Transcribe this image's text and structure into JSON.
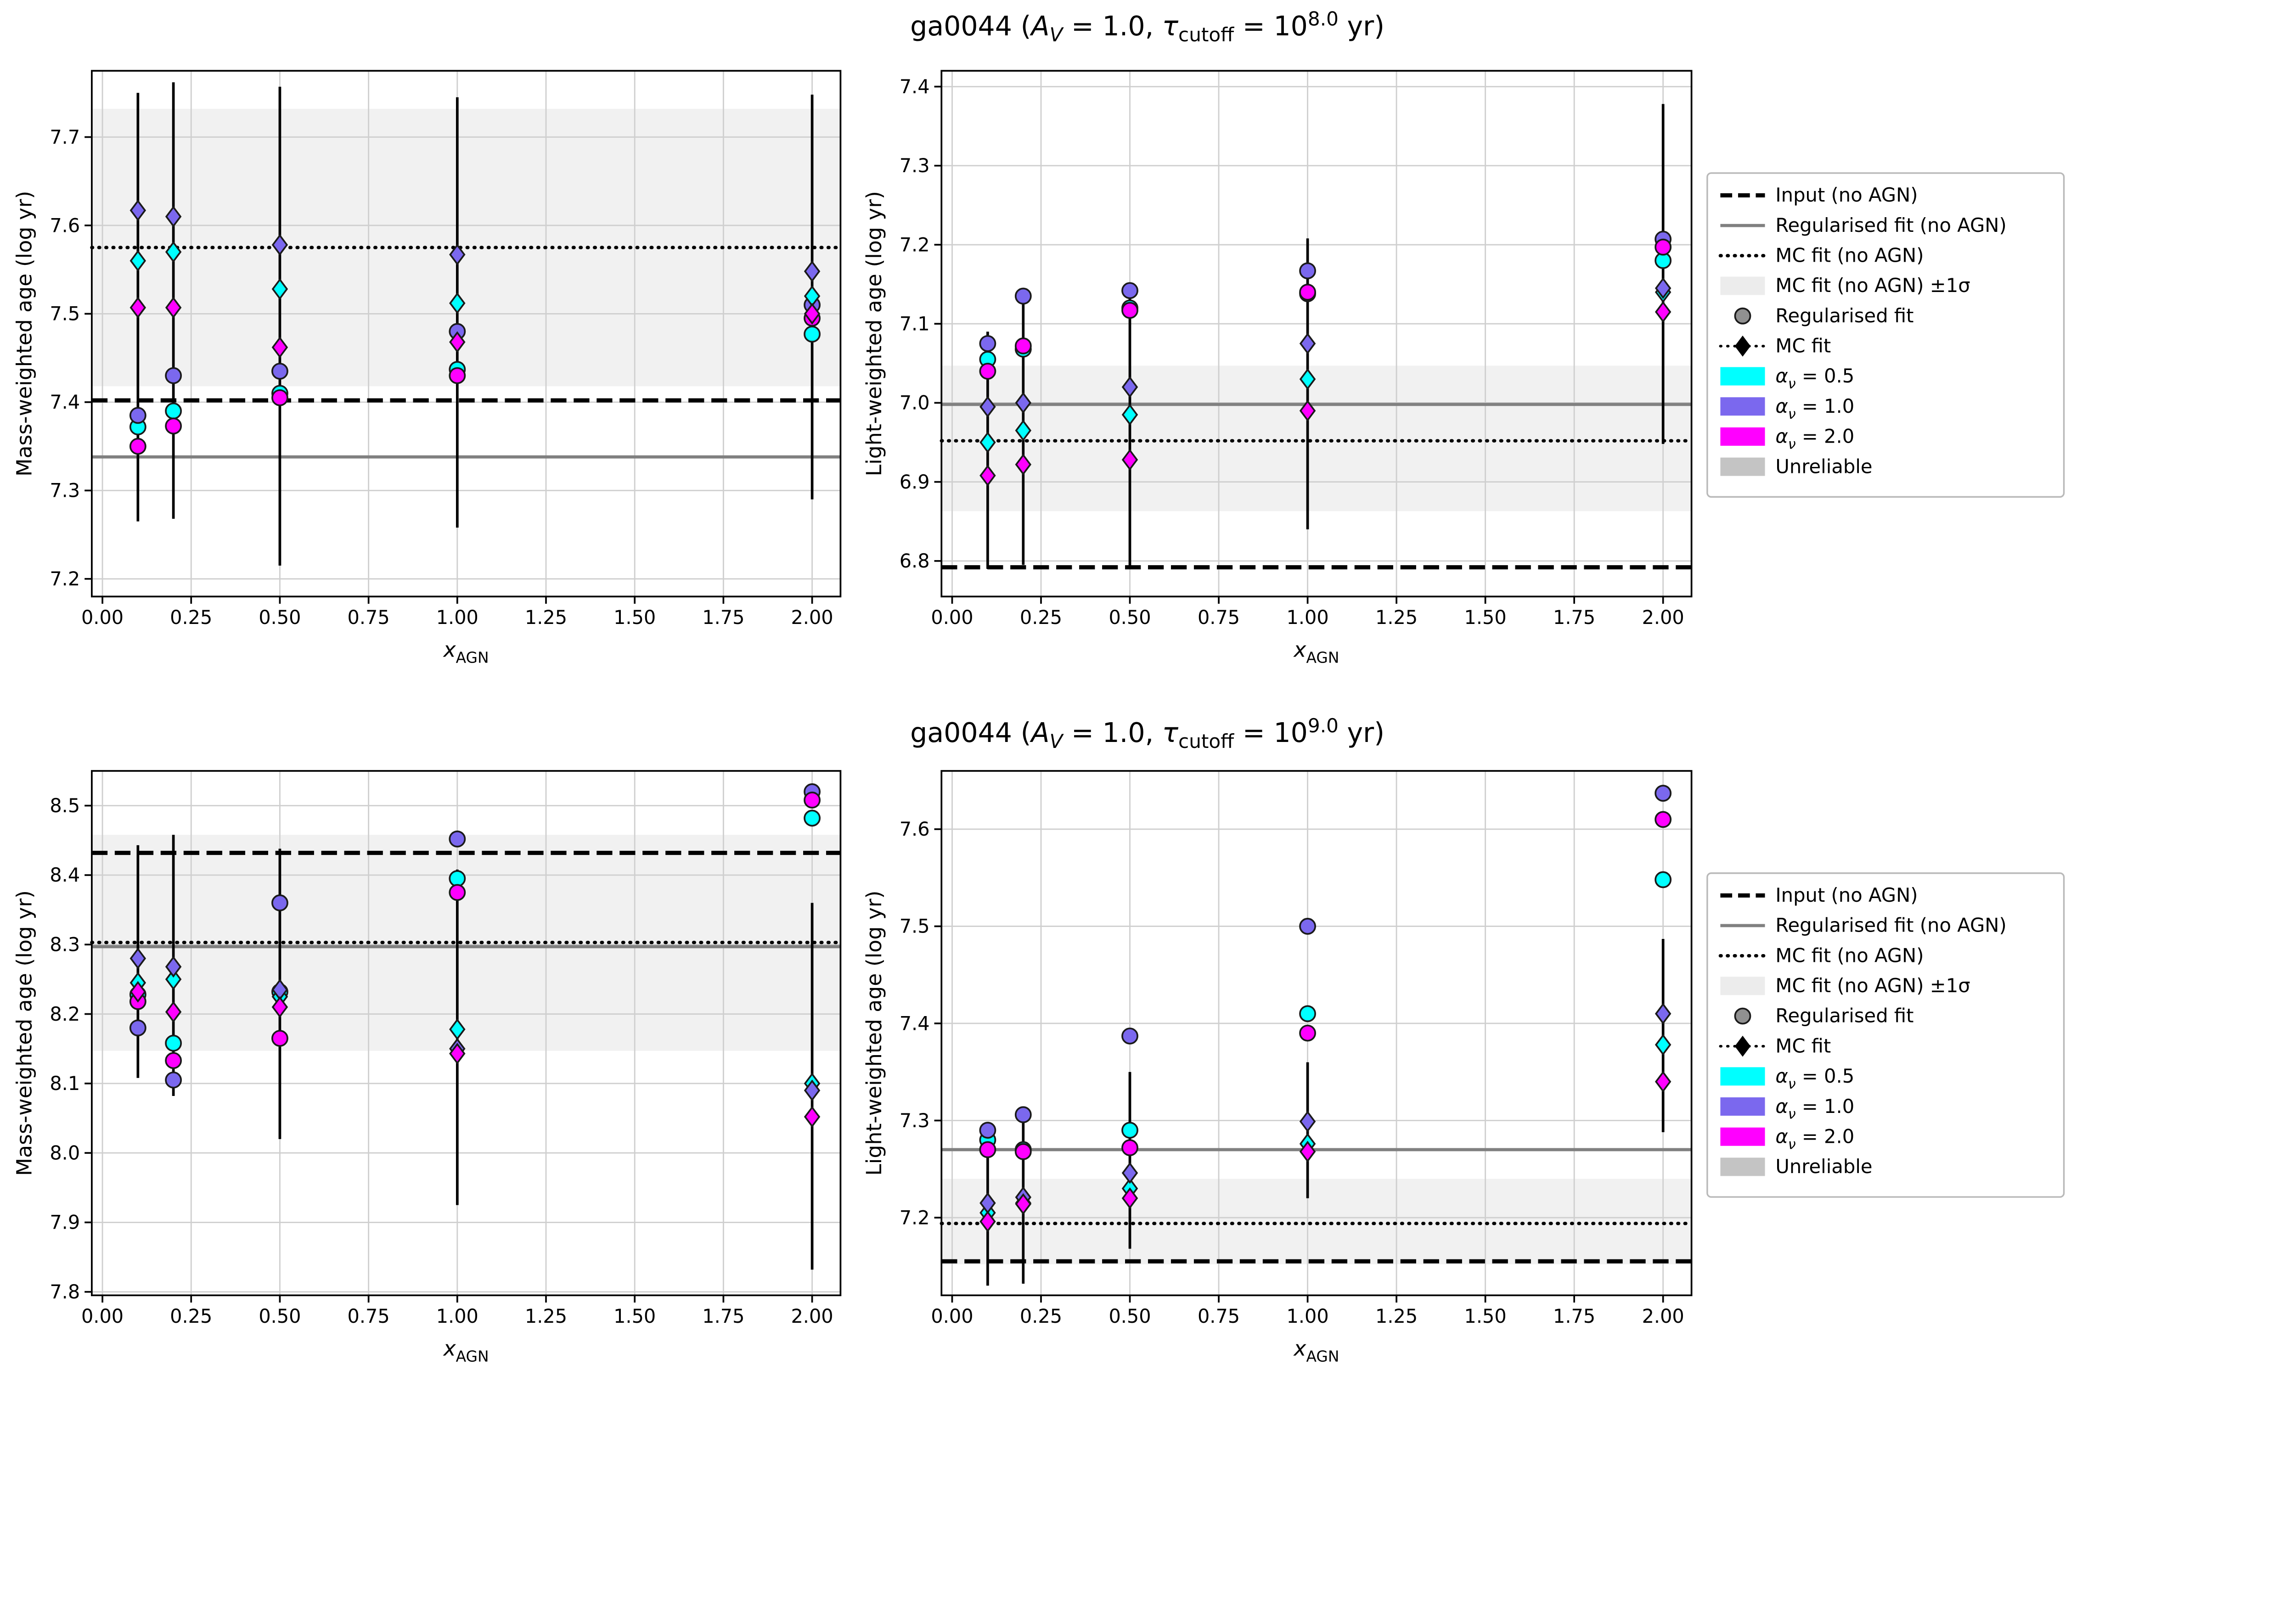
{
  "figure_titles": [
    {
      "segments": [
        {
          "t": "ga0044 ("
        },
        {
          "t": "A",
          "i": 1
        },
        {
          "t": "V",
          "sub": 1,
          "i": 1
        },
        {
          "t": " = 1.0, "
        },
        {
          "t": "τ",
          "i": 1
        },
        {
          "t": "cutoff",
          "sub": 1
        },
        {
          "t": " = 10"
        },
        {
          "t": "8.0",
          "sup": 1
        },
        {
          "t": " yr)"
        }
      ]
    },
    {
      "segments": [
        {
          "t": "ga0044 ("
        },
        {
          "t": "A",
          "i": 1
        },
        {
          "t": "V",
          "sub": 1,
          "i": 1
        },
        {
          "t": " = 1.0, "
        },
        {
          "t": "τ",
          "i": 1
        },
        {
          "t": "cutoff",
          "sub": 1
        },
        {
          "t": " = 10"
        },
        {
          "t": "9.0",
          "sup": 1
        },
        {
          "t": " yr)"
        }
      ]
    }
  ],
  "x_axis": {
    "label_segments": [
      {
        "t": "x",
        "i": 1
      },
      {
        "t": "AGN",
        "sub": 1
      }
    ],
    "lim": [
      -0.03,
      2.08
    ],
    "ticks": [
      0,
      0.25,
      0.5,
      0.75,
      1.0,
      1.25,
      1.5,
      1.75,
      2.0
    ],
    "tick_labels": [
      "0.00",
      "0.25",
      "0.50",
      "0.75",
      "1.00",
      "1.25",
      "1.50",
      "1.75",
      "2.00"
    ]
  },
  "colors": {
    "alpha_05": "#00FFFF",
    "alpha_10": "#7B68EE",
    "alpha_20": "#FF00FF",
    "gray_line": "#808080",
    "band": "#ececec",
    "unreliable": "#c4c4c4",
    "grid": "#cfcfcf",
    "marker_edge": "#1a1a1a",
    "legend_gray_marker": "#909090"
  },
  "legend": {
    "items": [
      {
        "sample": "dashed-line",
        "label_segments": [
          {
            "t": "Input (no AGN)"
          }
        ]
      },
      {
        "sample": "solid-line",
        "label_segments": [
          {
            "t": "Regularised fit (no AGN)"
          }
        ]
      },
      {
        "sample": "dotted-line",
        "label_segments": [
          {
            "t": "MC fit (no AGN)"
          }
        ]
      },
      {
        "sample": "sigma-band",
        "label_segments": [
          {
            "t": "MC fit (no AGN) ±1σ"
          }
        ]
      },
      {
        "sample": "circle-marker",
        "label_segments": [
          {
            "t": "Regularised fit"
          }
        ]
      },
      {
        "sample": "diamond-marker",
        "label_segments": [
          {
            "t": "MC fit"
          }
        ]
      },
      {
        "sample": "patch-cyan",
        "label_segments": [
          {
            "t": "α",
            "i": 1
          },
          {
            "t": "ν",
            "sub": 1,
            "i": 1
          },
          {
            "t": " = 0.5"
          }
        ]
      },
      {
        "sample": "patch-blue",
        "label_segments": [
          {
            "t": "α",
            "i": 1
          },
          {
            "t": "ν",
            "sub": 1,
            "i": 1
          },
          {
            "t": " = 1.0"
          }
        ]
      },
      {
        "sample": "patch-magenta",
        "label_segments": [
          {
            "t": "α",
            "i": 1
          },
          {
            "t": "ν",
            "sub": 1,
            "i": 1
          },
          {
            "t": " = 2.0"
          }
        ]
      },
      {
        "sample": "patch-unreliable",
        "label_segments": [
          {
            "t": "Unreliable"
          }
        ]
      }
    ]
  },
  "chart_data": [
    {
      "id": "mass-weighted-tau8",
      "type": "scatter",
      "row": 0,
      "col": 0,
      "ylabel": "Mass-weighted age (log yr)",
      "ylim": [
        7.18,
        7.775
      ],
      "yticks": [
        7.2,
        7.3,
        7.4,
        7.5,
        7.6,
        7.7
      ],
      "ytick_labels": [
        "7.2",
        "7.3",
        "7.4",
        "7.5",
        "7.6",
        "7.7"
      ],
      "hlines": {
        "input_no_agn": 7.402,
        "regularised_fit_no_agn": 7.338,
        "mc_fit_no_agn": 7.575
      },
      "mc_band_1sigma": [
        7.418,
        7.732
      ],
      "x": [
        0.1,
        0.2,
        0.5,
        1.0,
        2.0
      ],
      "errorbars_lo": [
        7.265,
        7.268,
        7.215,
        7.258,
        7.29
      ],
      "errorbars_hi": [
        7.75,
        7.762,
        7.757,
        7.745,
        7.748
      ],
      "regularised_fit": {
        "alpha_0.5": [
          7.372,
          7.39,
          7.41,
          7.437,
          7.477
        ],
        "alpha_1.0": [
          7.385,
          7.43,
          7.435,
          7.48,
          7.51
        ],
        "alpha_2.0": [
          7.35,
          7.373,
          7.405,
          7.43,
          7.495
        ]
      },
      "mc_fit": {
        "alpha_0.5": [
          7.56,
          7.57,
          7.528,
          7.512,
          7.52
        ],
        "alpha_1.0": [
          7.617,
          7.61,
          7.578,
          7.567,
          7.548
        ],
        "alpha_2.0": [
          7.507,
          7.507,
          7.462,
          7.468,
          7.5
        ]
      }
    },
    {
      "id": "light-weighted-tau8",
      "type": "scatter",
      "row": 0,
      "col": 1,
      "ylabel": "Light-weighted age (log yr)",
      "ylim": [
        6.755,
        7.42
      ],
      "yticks": [
        6.8,
        6.9,
        7.0,
        7.1,
        7.2,
        7.3,
        7.4
      ],
      "ytick_labels": [
        "6.8",
        "6.9",
        "7.0",
        "7.1",
        "7.2",
        "7.3",
        "7.4"
      ],
      "hlines": {
        "input_no_agn": 6.792,
        "regularised_fit_no_agn": 6.998,
        "mc_fit_no_agn": 6.952
      },
      "mc_band_1sigma": [
        6.863,
        7.047
      ],
      "x": [
        0.1,
        0.2,
        0.5,
        1.0,
        2.0
      ],
      "errorbars_lo": [
        6.79,
        6.795,
        6.79,
        6.84,
        6.948
      ],
      "errorbars_hi": [
        7.09,
        7.13,
        7.15,
        7.208,
        7.378
      ],
      "regularised_fit": {
        "alpha_0.5": [
          7.055,
          7.068,
          7.12,
          7.138,
          7.18
        ],
        "alpha_1.0": [
          7.075,
          7.135,
          7.142,
          7.167,
          7.207
        ],
        "alpha_2.0": [
          7.04,
          7.072,
          7.117,
          7.14,
          7.197
        ]
      },
      "mc_fit": {
        "alpha_0.5": [
          6.95,
          6.965,
          6.985,
          7.03,
          7.14
        ],
        "alpha_1.0": [
          6.995,
          7.0,
          7.02,
          7.075,
          7.145
        ],
        "alpha_2.0": [
          6.908,
          6.922,
          6.928,
          6.99,
          7.115
        ]
      }
    },
    {
      "id": "mass-weighted-tau9",
      "type": "scatter",
      "row": 1,
      "col": 0,
      "ylabel": "Mass-weighted age (log yr)",
      "ylim": [
        7.795,
        8.55
      ],
      "yticks": [
        7.8,
        7.9,
        8.0,
        8.1,
        8.2,
        8.3,
        8.4,
        8.5
      ],
      "ytick_labels": [
        "7.8",
        "7.9",
        "8.0",
        "8.1",
        "8.2",
        "8.3",
        "8.4",
        "8.5"
      ],
      "hlines": {
        "input_no_agn": 8.432,
        "regularised_fit_no_agn": 8.297,
        "mc_fit_no_agn": 8.303
      },
      "mc_band_1sigma": [
        8.147,
        8.458
      ],
      "x": [
        0.1,
        0.2,
        0.5,
        1.0,
        2.0
      ],
      "errorbars_lo": [
        8.108,
        8.082,
        8.02,
        7.925,
        7.832
      ],
      "errorbars_hi": [
        8.443,
        8.458,
        8.438,
        8.408,
        8.36
      ],
      "regularised_fit": {
        "alpha_0.5": [
          8.228,
          8.158,
          8.232,
          8.395,
          8.482
        ],
        "alpha_1.0": [
          8.18,
          8.105,
          8.36,
          8.452,
          8.52
        ],
        "alpha_2.0": [
          8.218,
          8.133,
          8.165,
          8.375,
          8.508
        ]
      },
      "mc_fit": {
        "alpha_0.5": [
          8.245,
          8.25,
          8.225,
          8.178,
          8.1
        ],
        "alpha_1.0": [
          8.28,
          8.268,
          8.235,
          8.15,
          8.09
        ],
        "alpha_2.0": [
          8.232,
          8.203,
          8.21,
          8.143,
          8.052
        ]
      }
    },
    {
      "id": "light-weighted-tau9",
      "type": "scatter",
      "row": 1,
      "col": 1,
      "ylabel": "Light-weighted age (log yr)",
      "ylim": [
        7.12,
        7.66
      ],
      "yticks": [
        7.2,
        7.3,
        7.4,
        7.5,
        7.6
      ],
      "ytick_labels": [
        "7.2",
        "7.3",
        "7.4",
        "7.5",
        "7.6"
      ],
      "hlines": {
        "input_no_agn": 7.155,
        "regularised_fit_no_agn": 7.27,
        "mc_fit_no_agn": 7.194
      },
      "mc_band_1sigma": [
        7.152,
        7.24
      ],
      "x": [
        0.1,
        0.2,
        0.5,
        1.0,
        2.0
      ],
      "errorbars_lo": [
        7.13,
        7.132,
        7.168,
        7.22,
        7.288
      ],
      "errorbars_hi": [
        7.298,
        7.31,
        7.35,
        7.36,
        7.487
      ],
      "regularised_fit": {
        "alpha_0.5": [
          7.28,
          7.27,
          7.29,
          7.41,
          7.548
        ],
        "alpha_1.0": [
          7.29,
          7.306,
          7.387,
          7.5,
          7.637
        ],
        "alpha_2.0": [
          7.27,
          7.268,
          7.272,
          7.39,
          7.61
        ]
      },
      "mc_fit": {
        "alpha_0.5": [
          7.205,
          7.215,
          7.23,
          7.276,
          7.378
        ],
        "alpha_1.0": [
          7.215,
          7.221,
          7.246,
          7.299,
          7.41
        ],
        "alpha_2.0": [
          7.196,
          7.214,
          7.22,
          7.268,
          7.34
        ]
      }
    }
  ]
}
